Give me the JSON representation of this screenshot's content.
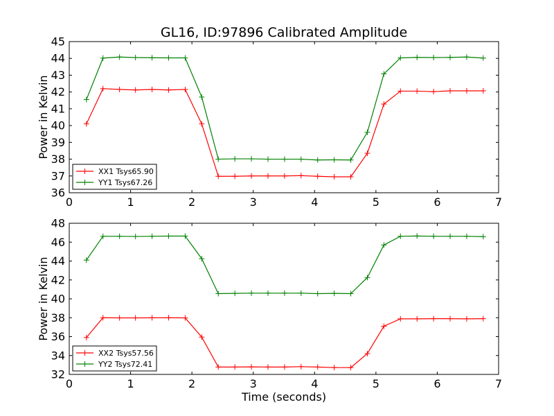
{
  "figure": {
    "title": "GL16, ID:97896 Calibrated Amplitude",
    "xlabel": "Time (seconds)"
  },
  "chart_data": [
    {
      "type": "line",
      "title": "GL16, ID:97896 Calibrated Amplitude",
      "xlabel": "",
      "ylabel": "Power in Kelvin",
      "xlim": [
        0,
        7
      ],
      "ylim": [
        36,
        45
      ],
      "xticks": [
        "0",
        "1",
        "2",
        "3",
        "4",
        "5",
        "6",
        "7"
      ],
      "yticks": [
        "36",
        "37",
        "38",
        "39",
        "40",
        "41",
        "42",
        "43",
        "44",
        "45"
      ],
      "grid": false,
      "legend_position": "lower-left",
      "x": [
        0.28,
        0.55,
        0.82,
        1.08,
        1.35,
        1.62,
        1.89,
        2.16,
        2.43,
        2.7,
        2.97,
        3.24,
        3.51,
        3.78,
        4.05,
        4.32,
        4.59,
        4.86,
        5.13,
        5.4,
        5.67,
        5.94,
        6.21,
        6.48,
        6.75
      ],
      "series": [
        {
          "name": "XX1 Tsys65.90",
          "color": "#ff0000",
          "values": [
            40.1,
            42.2,
            42.15,
            42.12,
            42.15,
            42.12,
            42.15,
            40.1,
            36.98,
            36.98,
            37.0,
            37.0,
            37.0,
            37.02,
            36.98,
            36.95,
            36.95,
            38.35,
            41.28,
            42.05,
            42.05,
            42.02,
            42.07,
            42.07,
            42.07
          ]
        },
        {
          "name": "YY1 Tsys67.26",
          "color": "#008000",
          "values": [
            41.55,
            44.02,
            44.08,
            44.05,
            44.04,
            44.03,
            44.03,
            41.7,
            38.0,
            38.02,
            38.02,
            38.0,
            38.0,
            38.0,
            37.95,
            37.96,
            37.95,
            39.6,
            43.08,
            44.03,
            44.06,
            44.05,
            44.06,
            44.08,
            44.02
          ]
        }
      ]
    },
    {
      "type": "line",
      "title": "",
      "xlabel": "Time (seconds)",
      "ylabel": "Power in Kelvin",
      "xlim": [
        0,
        7
      ],
      "ylim": [
        32,
        48
      ],
      "xticks": [
        "0",
        "1",
        "2",
        "3",
        "4",
        "5",
        "6",
        "7"
      ],
      "yticks": [
        "32",
        "34",
        "36",
        "38",
        "40",
        "42",
        "44",
        "46",
        "48"
      ],
      "grid": false,
      "legend_position": "lower-left",
      "x": [
        0.28,
        0.55,
        0.82,
        1.08,
        1.35,
        1.62,
        1.89,
        2.16,
        2.43,
        2.7,
        2.97,
        3.24,
        3.51,
        3.78,
        4.05,
        4.32,
        4.59,
        4.86,
        5.13,
        5.4,
        5.67,
        5.94,
        6.21,
        6.48,
        6.75
      ],
      "series": [
        {
          "name": "XX2 Tsys57.56",
          "color": "#ff0000",
          "values": [
            35.9,
            38.0,
            37.98,
            37.98,
            37.99,
            38.0,
            37.98,
            35.95,
            32.78,
            32.78,
            32.8,
            32.78,
            32.78,
            32.82,
            32.78,
            32.72,
            32.72,
            34.2,
            37.1,
            37.88,
            37.88,
            37.9,
            37.9,
            37.88,
            37.9
          ]
        },
        {
          "name": "YY2 Tsys72.41",
          "color": "#008000",
          "values": [
            44.1,
            46.62,
            46.62,
            46.6,
            46.62,
            46.64,
            46.64,
            44.25,
            40.55,
            40.58,
            40.6,
            40.6,
            40.6,
            40.6,
            40.55,
            40.58,
            40.55,
            42.25,
            45.7,
            46.62,
            46.65,
            46.62,
            46.62,
            46.62,
            46.58
          ]
        }
      ]
    }
  ]
}
